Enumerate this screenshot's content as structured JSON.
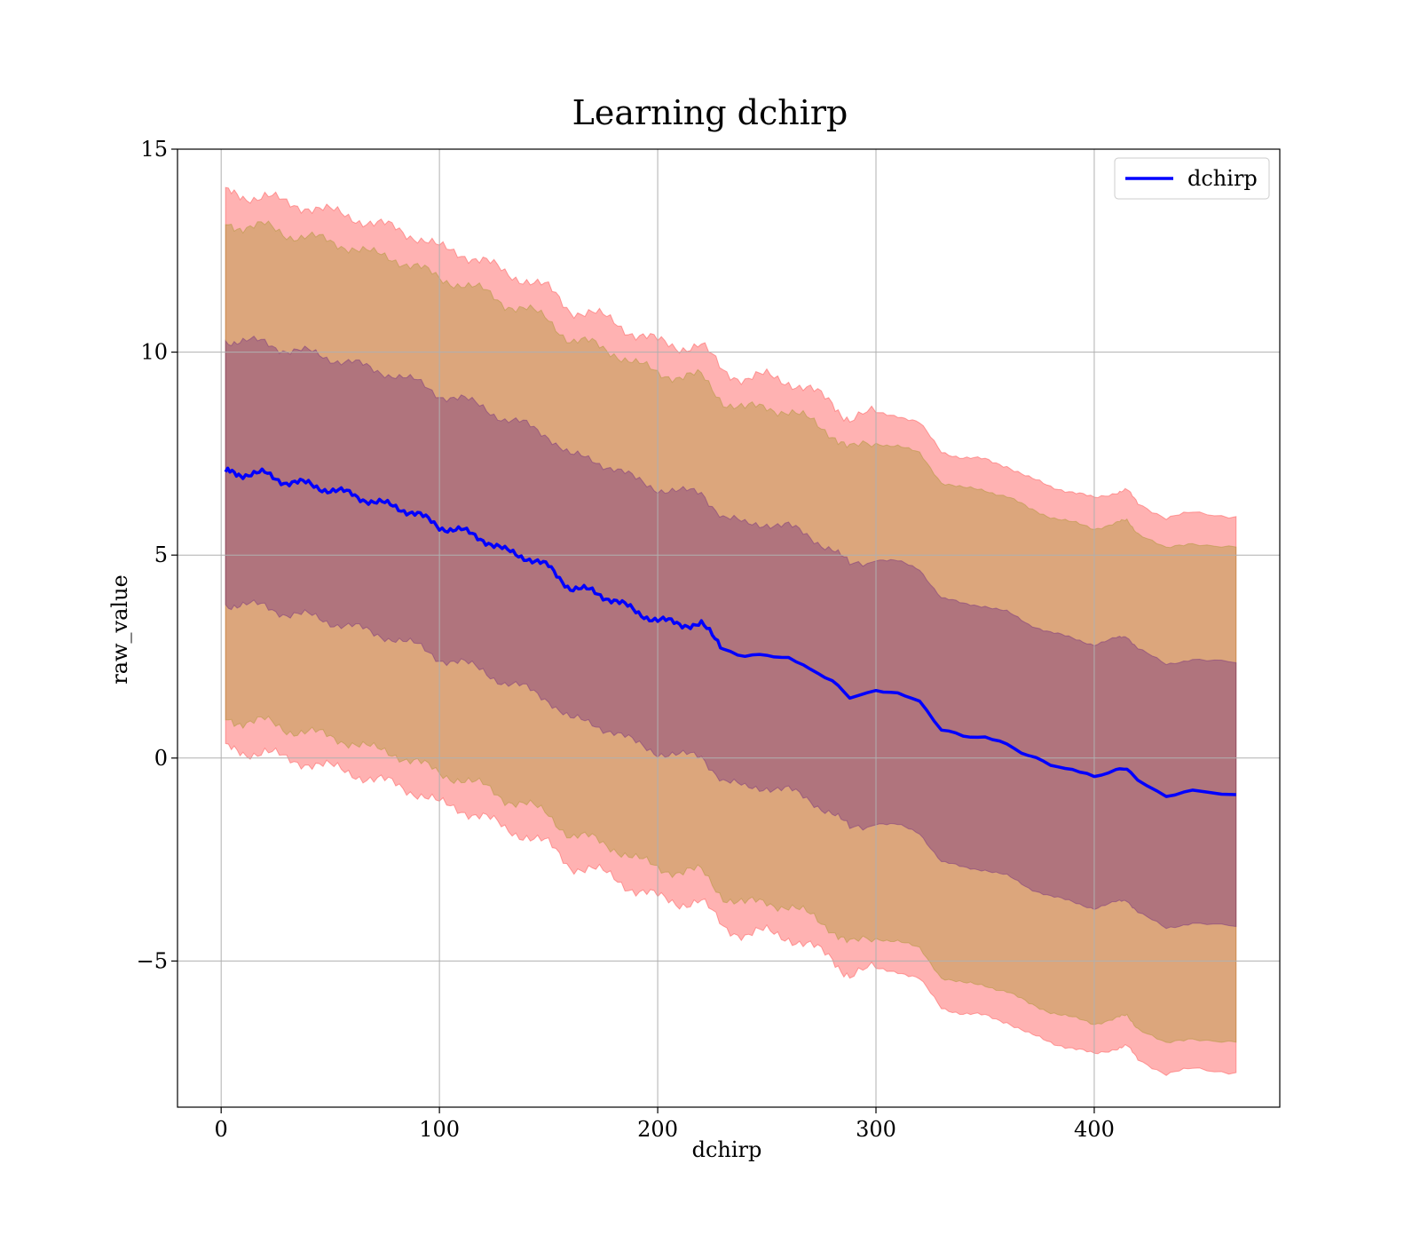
{
  "chart_data": {
    "type": "line",
    "title": "Learning dchirp",
    "xlabel": "dchirp",
    "ylabel": "raw_value",
    "xlim": [
      -20,
      485
    ],
    "ylim": [
      -8.6,
      15
    ],
    "x_ticks": [
      0,
      100,
      200,
      300,
      400
    ],
    "x_tick_labels": [
      "0",
      "100",
      "200",
      "300",
      "400"
    ],
    "y_ticks": [
      -5,
      0,
      5,
      10,
      15
    ],
    "y_tick_labels": [
      "−5",
      "0",
      "5",
      "10",
      "15"
    ],
    "grid": true,
    "legend": {
      "position": "top-right",
      "entries": [
        "dchirp"
      ]
    },
    "colors": {
      "mean_line": "#0000ff",
      "outer_band": "#ff0000",
      "middle_band": "#8b8b00",
      "inner_band": "#4b0082",
      "grid": "#b0b0b0"
    },
    "series": [
      {
        "name": "dchirp",
        "x": [
          2,
          10,
          20,
          30,
          40,
          50,
          60,
          70,
          80,
          90,
          100,
          110,
          120,
          130,
          140,
          150,
          160,
          170,
          180,
          190,
          200,
          210,
          220,
          230,
          240,
          250,
          260,
          270,
          280,
          288,
          300,
          310,
          320,
          330,
          340,
          350,
          360,
          370,
          380,
          390,
          400,
          410,
          415,
          420,
          433,
          445,
          465
        ],
        "mean": [
          7.05,
          7.0,
          7.0,
          6.8,
          6.75,
          6.6,
          6.5,
          6.3,
          6.2,
          6.0,
          5.7,
          5.6,
          5.4,
          5.1,
          4.95,
          4.7,
          4.2,
          4.1,
          3.9,
          3.6,
          3.4,
          3.3,
          3.3,
          2.7,
          2.5,
          2.55,
          2.45,
          2.2,
          1.9,
          1.5,
          1.65,
          1.6,
          1.4,
          0.7,
          0.55,
          0.5,
          0.35,
          0.05,
          -0.15,
          -0.3,
          -0.45,
          -0.3,
          -0.25,
          -0.55,
          -0.95,
          -0.8,
          -0.9
        ],
        "band_1sigma": [
          3.25,
          3.25,
          3.25,
          3.25,
          3.25,
          3.25,
          3.25,
          3.25,
          3.25,
          3.25,
          3.25,
          3.25,
          3.25,
          3.25,
          3.25,
          3.25,
          3.25,
          3.25,
          3.25,
          3.25,
          3.25,
          3.25,
          3.25,
          3.25,
          3.25,
          3.25,
          3.25,
          3.25,
          3.25,
          3.25,
          3.25,
          3.25,
          3.25,
          3.25,
          3.25,
          3.25,
          3.25,
          3.25,
          3.25,
          3.25,
          3.25,
          3.25,
          3.25,
          3.25,
          3.25,
          3.25,
          3.25
        ],
        "band_2sigma": [
          6.1,
          6.1,
          6.1,
          6.1,
          6.1,
          6.1,
          6.1,
          6.1,
          6.1,
          6.1,
          6.1,
          6.1,
          6.1,
          6.1,
          6.1,
          6.1,
          6.1,
          6.1,
          6.1,
          6.1,
          6.1,
          6.1,
          6.1,
          6.1,
          6.1,
          6.1,
          6.1,
          6.1,
          6.1,
          6.1,
          6.1,
          6.1,
          6.1,
          6.1,
          6.1,
          6.1,
          6.1,
          6.1,
          6.1,
          6.1,
          6.1,
          6.1,
          6.1,
          6.1,
          6.1,
          6.1,
          6.1
        ],
        "band_3sigma": [
          6.85,
          6.85,
          6.85,
          6.85,
          6.85,
          6.85,
          6.85,
          6.85,
          6.85,
          6.85,
          6.85,
          6.85,
          6.85,
          6.85,
          6.85,
          6.85,
          6.85,
          6.85,
          6.85,
          6.85,
          6.85,
          6.85,
          6.85,
          6.85,
          6.85,
          6.85,
          6.85,
          6.85,
          6.85,
          6.85,
          6.85,
          6.85,
          6.85,
          6.85,
          6.85,
          6.85,
          6.85,
          6.85,
          6.85,
          6.85,
          6.85,
          6.85,
          6.85,
          6.85,
          6.85,
          6.85,
          6.85
        ]
      }
    ]
  }
}
